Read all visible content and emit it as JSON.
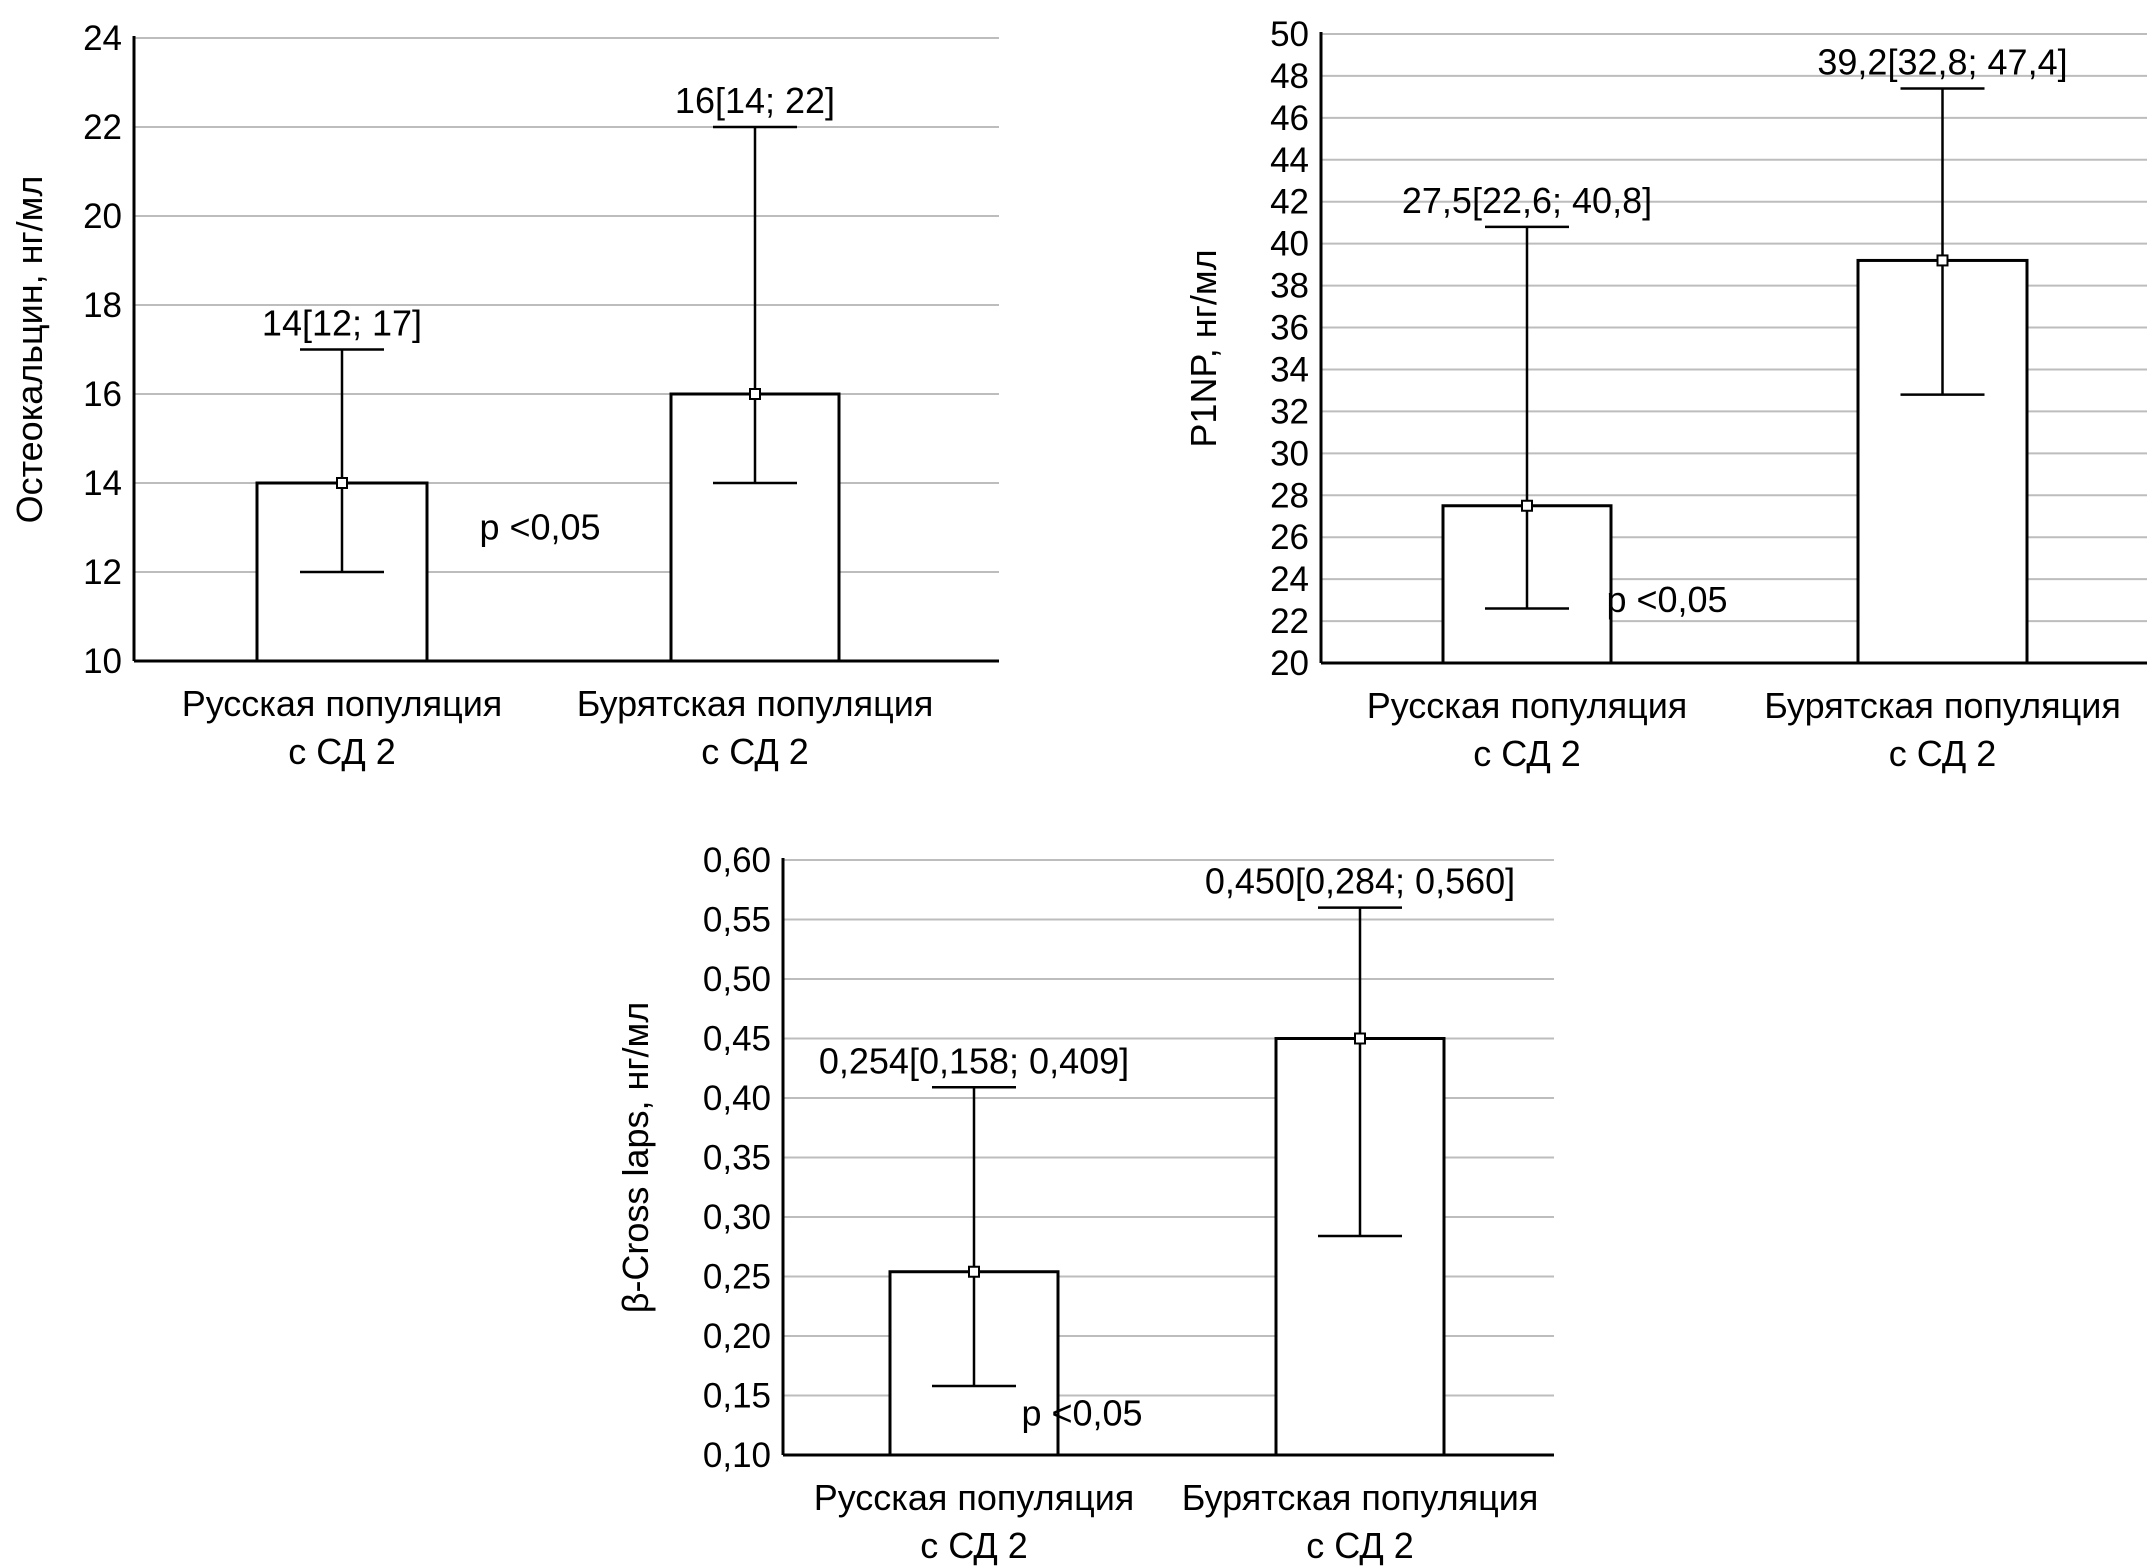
{
  "chart_data": [
    {
      "type": "bar",
      "title": "",
      "ylabel": "Остеокальцин, нг/мл",
      "xlabel": "",
      "ylim": [
        10,
        24
      ],
      "ytick_step": 2,
      "ytick_decimals": 0,
      "yticks": [
        "10",
        "12",
        "14",
        "16",
        "18",
        "20",
        "22",
        "24"
      ],
      "grid": true,
      "categories": [
        {
          "line1": "Русская популяция",
          "line2": "с СД 2"
        },
        {
          "line1": "Бурятская популяция",
          "line2": "с СД 2"
        }
      ],
      "values": [
        14,
        16
      ],
      "q1": [
        12,
        14
      ],
      "q3": [
        17,
        22
      ],
      "annotations": [
        "14[12; 17]",
        "16[14; 22]"
      ],
      "p_value": "p <0,05"
    },
    {
      "type": "bar",
      "title": "",
      "ylabel": "P1NP, нг/мл",
      "xlabel": "",
      "ylim": [
        20,
        50
      ],
      "ytick_step": 2,
      "ytick_decimals": 0,
      "yticks": [
        "20",
        "22",
        "24",
        "26",
        "28",
        "30",
        "32",
        "34",
        "36",
        "38",
        "40",
        "42",
        "44",
        "46",
        "48",
        "50"
      ],
      "grid": true,
      "categories": [
        {
          "line1": "Русская популяция",
          "line2": "с СД 2"
        },
        {
          "line1": "Бурятская популяция",
          "line2": "с СД 2"
        }
      ],
      "values": [
        27.5,
        39.2
      ],
      "q1": [
        22.6,
        32.8
      ],
      "q3": [
        40.8,
        47.4
      ],
      "annotations": [
        "27,5[22,6; 40,8]",
        "39,2[32,8; 47,4]"
      ],
      "p_value": "p <0,05"
    },
    {
      "type": "bar",
      "title": "",
      "ylabel": "β-Cross laps, нг/мл",
      "xlabel": "",
      "ylim": [
        0.1,
        0.6
      ],
      "ytick_step": 0.05,
      "ytick_decimals": 2,
      "yticks": [
        "0,10",
        "0,15",
        "0,20",
        "0,25",
        "0,30",
        "0,35",
        "0,40",
        "0,45",
        "0,50",
        "0,55",
        "0,60"
      ],
      "grid": true,
      "categories": [
        {
          "line1": "Русская популяция",
          "line2": "с СД 2"
        },
        {
          "line1": "Бурятская популяция",
          "line2": "с СД 2"
        }
      ],
      "values": [
        0.254,
        0.45
      ],
      "q1": [
        0.158,
        0.284
      ],
      "q3": [
        0.409,
        0.56
      ],
      "annotations": [
        "0,254[0,158; 0,409]",
        "0,450[0,284; 0,560]"
      ],
      "p_value": "p <0,05"
    }
  ]
}
